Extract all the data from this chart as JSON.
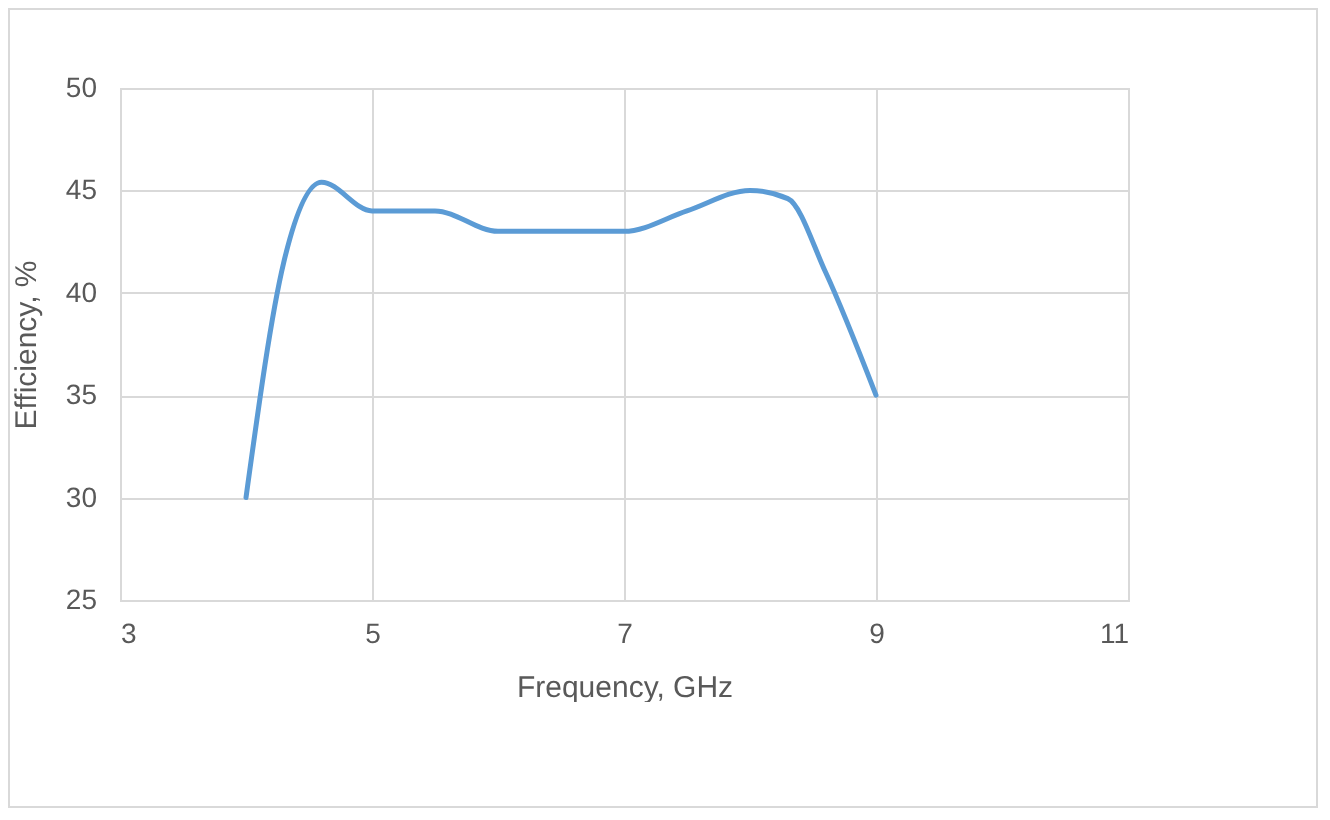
{
  "chart_data": {
    "type": "line",
    "xlabel": "Frequency, GHz",
    "ylabel": "Efficiency, %",
    "x": [
      4,
      4.3,
      4.6,
      5,
      5.5,
      6,
      6.5,
      7,
      7.5,
      8,
      8.3,
      8.6,
      9
    ],
    "series": [
      {
        "color": "#5b9bd5",
        "values": [
          30,
          41.5,
          45.4,
          44,
          44,
          43,
          43,
          43,
          44,
          45,
          44.6,
          41,
          35
        ]
      }
    ],
    "xlim": [
      3,
      11
    ],
    "xticks": [
      3,
      5,
      7,
      9,
      11
    ],
    "ylim": [
      25,
      50
    ],
    "yticks": [
      25,
      30,
      35,
      40,
      45,
      50
    ],
    "grid": true,
    "marker": "none",
    "line_style": "solid"
  }
}
